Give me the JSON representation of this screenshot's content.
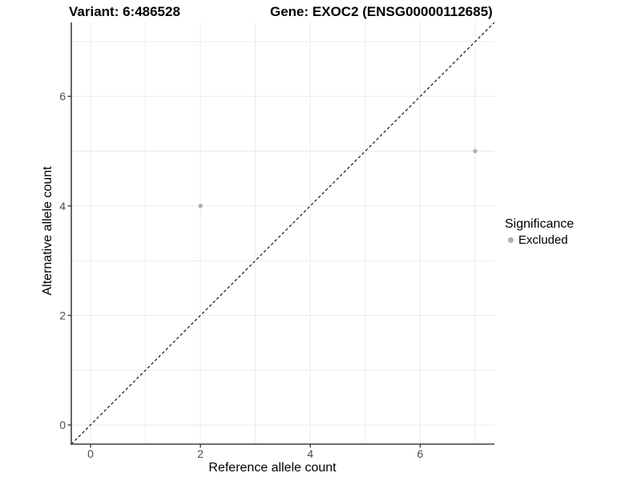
{
  "chart_data": {
    "type": "scatter",
    "titles": {
      "left": "Variant: 6:486528",
      "right": "Gene: EXOC2 (ENSG00000112685)"
    },
    "xlabel": "Reference allele count",
    "ylabel": "Alternative allele count",
    "xlim": [
      -0.35,
      7.35
    ],
    "ylim": [
      -0.35,
      7.35
    ],
    "xticks": [
      0,
      2,
      4,
      6
    ],
    "yticks": [
      0,
      2,
      4,
      6
    ],
    "gridline_positions": [
      0,
      1,
      2,
      3,
      4,
      5,
      6,
      7
    ],
    "grid": true,
    "series": [
      {
        "name": "Excluded",
        "color": "#b0b0b0",
        "points": [
          {
            "x": 2,
            "y": 4
          },
          {
            "x": 7,
            "y": 5
          }
        ]
      }
    ],
    "reference_line": {
      "kind": "identity y=x diagonal",
      "style": "dashed",
      "color": "#000000"
    },
    "legend": {
      "title": "Significance",
      "position": "right",
      "items": [
        {
          "label": "Excluded",
          "color": "#b0b0b0"
        }
      ]
    },
    "colors": {
      "grid": "#eaeaea",
      "axis": "#404040",
      "tick_label": "#4d4d4d",
      "background": "#ffffff"
    }
  }
}
